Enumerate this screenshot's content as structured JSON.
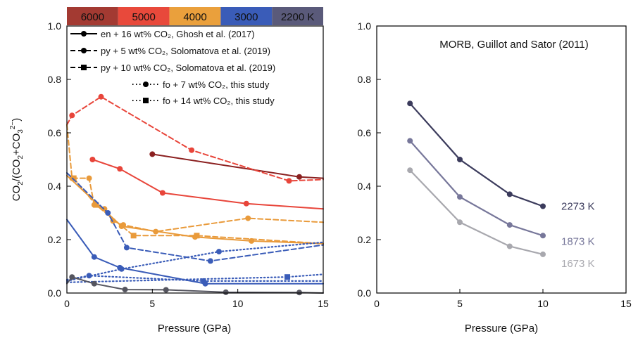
{
  "chart_data": [
    {
      "type": "line",
      "xlabel": "Pressure (GPa)",
      "ylabel": "CO2/(CO2+CO3 2−)",
      "xlim": [
        0,
        15
      ],
      "ylim": [
        0,
        1
      ],
      "xticks": [
        "0",
        "5",
        "10",
        "15"
      ],
      "yticks": [
        "0.0",
        "0.2",
        "0.4",
        "0.6",
        "0.8",
        "1.0"
      ],
      "temperature_bar": [
        {
          "label": "6000",
          "color": "#a33a32"
        },
        {
          "label": "5000",
          "color": "#e8493b"
        },
        {
          "label": "4000",
          "color": "#eaa03c"
        },
        {
          "label": "3000",
          "color": "#3a5cb8"
        },
        {
          "label": "2200 K",
          "color": "#5a5a7a"
        }
      ],
      "legend": [
        {
          "label": "en + 16 wt% CO₂, Ghosh et al. (2017)",
          "dash": "solid",
          "marker": "circle"
        },
        {
          "label": "py + 5 wt% CO₂, Solomatova et al. (2019)",
          "dash": "dashed",
          "marker": "circle"
        },
        {
          "label": "py + 10 wt% CO₂, Solomatova et al. (2019)",
          "dash": "dashed",
          "marker": "square"
        },
        {
          "label": "fo + 7 wt% CO₂, this study",
          "dash": "dotted",
          "marker": "circle"
        },
        {
          "label": "fo + 14 wt% CO₂, this study",
          "dash": "dotted",
          "marker": "square"
        }
      ],
      "series": [
        {
          "color": "#8b2020",
          "dash": "solid",
          "marker": "circle",
          "points": [
            [
              5,
              0.52
            ],
            [
              13.6,
              0.435
            ],
            [
              15,
              0.43
            ]
          ]
        },
        {
          "color": "#e8453a",
          "dash": "dashed",
          "marker": "circle",
          "points": [
            [
              0,
              0.63
            ],
            [
              0.3,
              0.665
            ],
            [
              2,
              0.735
            ],
            [
              7.3,
              0.535
            ],
            [
              13,
              0.42
            ],
            [
              15,
              0.425
            ]
          ]
        },
        {
          "color": "#e8453a",
          "dash": "solid",
          "marker": "circle",
          "points": [
            [
              1.5,
              0.5
            ],
            [
              3.1,
              0.465
            ],
            [
              5.6,
              0.375
            ],
            [
              10.5,
              0.335
            ],
            [
              15,
              0.315
            ]
          ]
        },
        {
          "color": "#e99a3a",
          "dash": "dashed",
          "marker": "circle",
          "points": [
            [
              0,
              0.63
            ],
            [
              0.3,
              0.43
            ],
            [
              1.3,
              0.43
            ],
            [
              1.6,
              0.33
            ],
            [
              2.2,
              0.315
            ],
            [
              2.7,
              0.27
            ],
            [
              3.3,
              0.255
            ],
            [
              5.2,
              0.23
            ],
            [
              10.6,
              0.28
            ],
            [
              15,
              0.265
            ]
          ]
        },
        {
          "color": "#e99a3a",
          "dash": "dashed",
          "marker": "square",
          "points": [
            [
              0.4,
              0.43
            ],
            [
              1.7,
              0.33
            ],
            [
              3.9,
              0.215
            ],
            [
              7.6,
              0.215
            ],
            [
              15,
              0.185
            ]
          ]
        },
        {
          "color": "#e99a3a",
          "dash": "solid",
          "marker": "circle",
          "points": [
            [
              0,
              0.44
            ],
            [
              3.2,
              0.25
            ],
            [
              7.5,
              0.21
            ],
            [
              10.8,
              0.195
            ],
            [
              15,
              0.185
            ]
          ]
        },
        {
          "color": "#3a5cb8",
          "dash": "solid",
          "marker": "circle",
          "points": [
            [
              0,
              0.275
            ],
            [
              1.6,
              0.135
            ],
            [
              3.1,
              0.095
            ],
            [
              8.1,
              0.035
            ],
            [
              15,
              0.035
            ]
          ]
        },
        {
          "color": "#3a5cb8",
          "dash": "dashed",
          "marker": "circle",
          "points": [
            [
              0,
              0.45
            ],
            [
              2.4,
              0.3
            ],
            [
              3.5,
              0.17
            ],
            [
              8.4,
              0.12
            ],
            [
              15,
              0.18
            ]
          ]
        },
        {
          "color": "#3a5cb8",
          "dash": "dotted",
          "marker": "circle",
          "points": [
            [
              0,
              0.045
            ],
            [
              3.2,
              0.09
            ],
            [
              8.9,
              0.155
            ],
            [
              15,
              0.19
            ]
          ]
        },
        {
          "color": "#3a5cb8",
          "dash": "dotted",
          "marker": "circle",
          "points": [
            [
              0,
              0.05
            ],
            [
              1.3,
              0.065
            ],
            [
              8,
              0.045
            ],
            [
              15,
              0.045
            ]
          ]
        },
        {
          "color": "#3a5cb8",
          "dash": "dotted",
          "marker": "square",
          "points": [
            [
              0,
              0.04
            ],
            [
              12.9,
              0.06
            ],
            [
              15,
              0.07
            ]
          ]
        },
        {
          "color": "#55555f",
          "dash": "solid",
          "marker": "circle",
          "points": [
            [
              0,
              0.035
            ],
            [
              0.3,
              0.06
            ],
            [
              1.6,
              0.035
            ],
            [
              3.4,
              0.013
            ],
            [
              5.8,
              0.012
            ],
            [
              9.3,
              0.003
            ],
            [
              13.6,
              0.002
            ],
            [
              15,
              0.0
            ]
          ]
        }
      ]
    },
    {
      "type": "line",
      "title": "MORB, Guillot and Sator (2011)",
      "xlabel": "Pressure (GPa)",
      "ylabel": "",
      "xlim": [
        0,
        15
      ],
      "ylim": [
        0,
        1
      ],
      "xticks": [
        "0",
        "5",
        "10",
        "15"
      ],
      "yticks": [
        "0.0",
        "0.2",
        "0.4",
        "0.6",
        "0.8",
        "1.0"
      ],
      "series": [
        {
          "name": "2273 K",
          "color": "#3b3b5c",
          "x": [
            2,
            5,
            8,
            10
          ],
          "y": [
            0.71,
            0.5,
            0.37,
            0.325
          ]
        },
        {
          "name": "1873 K",
          "color": "#77779a",
          "x": [
            2,
            5,
            8,
            10
          ],
          "y": [
            0.57,
            0.36,
            0.255,
            0.215
          ]
        },
        {
          "name": "1673 K",
          "color": "#a8a8ae",
          "x": [
            2,
            5,
            8,
            10
          ],
          "y": [
            0.46,
            0.265,
            0.175,
            0.145
          ]
        }
      ]
    }
  ]
}
